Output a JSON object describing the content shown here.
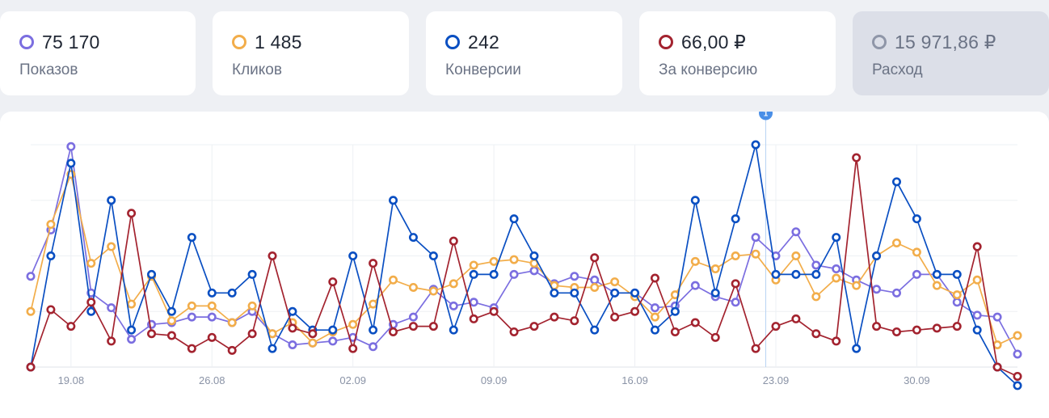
{
  "metrics": [
    {
      "value": "75 170",
      "label": "Показов",
      "color": "#7b6ee0",
      "active": true
    },
    {
      "value": "1 485",
      "label": "Кликов",
      "color": "#f2ad4a",
      "active": true
    },
    {
      "value": "242",
      "label": "Конверсии",
      "color": "#0a4fc2",
      "active": true
    },
    {
      "value": "66,00 ₽",
      "label": "За конверсию",
      "color": "#a3232f",
      "active": true
    },
    {
      "value": "15 971,86 ₽",
      "label": "Расход",
      "color": "#8f96a8",
      "active": false
    }
  ],
  "chart_data": {
    "type": "line",
    "x_tick_labels": [
      "19.08",
      "26.08",
      "02.09",
      "09.09",
      "16.09",
      "23.09",
      "30.09"
    ],
    "x_tick_indices": [
      2,
      9,
      16,
      23,
      30,
      37,
      44
    ],
    "point_count": 50,
    "y_axis_labels_shown": false,
    "grid": true,
    "marker": {
      "label": "1",
      "index": 36.5
    },
    "ylim": [
      0,
      120
    ],
    "series": [
      {
        "key": "impressions",
        "color": "#7b6ee0",
        "values": [
          49,
          74,
          119,
          40,
          32,
          15,
          23,
          24,
          27,
          27,
          24,
          30,
          18,
          12,
          13,
          14,
          16,
          11,
          23,
          27,
          42,
          33,
          35,
          32,
          50,
          52,
          45,
          49,
          47,
          40,
          40,
          32,
          33,
          44,
          38,
          35,
          70,
          60,
          73,
          55,
          53,
          47,
          42,
          40,
          50,
          50,
          35,
          28,
          27,
          7
        ]
      },
      {
        "key": "clicks",
        "color": "#f2ad4a",
        "values": [
          30,
          77,
          104,
          56,
          65,
          34,
          49,
          25,
          33,
          33,
          24,
          33,
          18,
          24,
          13,
          19,
          23,
          34,
          47,
          43,
          41,
          45,
          55,
          57,
          58,
          56,
          44,
          43,
          43,
          46,
          38,
          27,
          39,
          57,
          53,
          60,
          61,
          47,
          60,
          38,
          48,
          44,
          60,
          67,
          62,
          44,
          39,
          47,
          12,
          17
        ]
      },
      {
        "key": "conversions",
        "color": "#0a4fc2",
        "values": [
          0,
          60,
          110,
          30,
          90,
          20,
          50,
          30,
          70,
          40,
          40,
          50,
          10,
          30,
          20,
          20,
          60,
          20,
          90,
          70,
          60,
          20,
          50,
          50,
          80,
          60,
          40,
          40,
          20,
          40,
          40,
          20,
          30,
          90,
          40,
          80,
          120,
          50,
          50,
          50,
          70,
          10,
          60,
          100,
          80,
          50,
          50,
          20,
          0,
          -10
        ]
      },
      {
        "key": "cost_per_conversion",
        "color": "#a3232f",
        "values": [
          0,
          31,
          22,
          35,
          14,
          83,
          18,
          17,
          10,
          16,
          9,
          18,
          60,
          21,
          18,
          46,
          10,
          56,
          19,
          22,
          22,
          68,
          26,
          30,
          19,
          22,
          27,
          25,
          59,
          27,
          30,
          48,
          19,
          24,
          16,
          45,
          10,
          22,
          26,
          18,
          14,
          113,
          22,
          19,
          20,
          21,
          22,
          65,
          0,
          -5
        ]
      }
    ]
  }
}
